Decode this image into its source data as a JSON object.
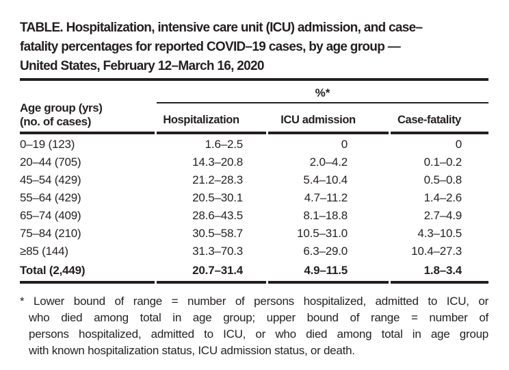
{
  "title": {
    "lines": [
      "TABLE. Hospitalization, intensive care unit (ICU) admission, and case–",
      "fatality percentages for reported COVID–19 cases, by age group —",
      "United States, February 12–March 16, 2020"
    ]
  },
  "table": {
    "col1_header_line1": "Age group (yrs)",
    "col1_header_line2": "(no. of cases)",
    "span_header": "%*",
    "columns": [
      "Hospitalization",
      "ICU admission",
      "Case-fatality"
    ],
    "rows": [
      {
        "age": "0–19 (123)",
        "hospitalization": "1.6–2.5",
        "icu": "0",
        "fatality": "0"
      },
      {
        "age": "20–44 (705)",
        "hospitalization": "14.3–20.8",
        "icu": "2.0–4.2",
        "fatality": "0.1–0.2"
      },
      {
        "age": "45–54 (429)",
        "hospitalization": "21.2–28.3",
        "icu": "5.4–10.4",
        "fatality": "0.5–0.8"
      },
      {
        "age": "55–64 (429)",
        "hospitalization": "20.5–30.1",
        "icu": "4.7–11.2",
        "fatality": "1.4–2.6"
      },
      {
        "age": "65–74 (409)",
        "hospitalization": "28.6–43.5",
        "icu": "8.1–18.8",
        "fatality": "2.7–4.9"
      },
      {
        "age": "75–84 (210)",
        "hospitalization": "30.5–58.7",
        "icu": "10.5–31.0",
        "fatality": "4.3–10.5"
      },
      {
        "age": "≥85 (144)",
        "hospitalization": "31.3–70.3",
        "icu": "6.3–29.0",
        "fatality": "10.4–27.3"
      }
    ],
    "total": {
      "age": "Total (2,449)",
      "hospitalization": "20.7–31.4",
      "icu": "4.9–11.5",
      "fatality": "1.8–3.4"
    }
  },
  "footnote": {
    "lines": [
      "* Lower bound of range = number of persons hospitalized, admitted to ICU, or",
      "who died among total in age group; upper bound of range = number of",
      "persons hospitalized, admitted to ICU, or who died among total in age group",
      "with known hospitalization status, ICU admission status, or death."
    ]
  },
  "colors": {
    "text": "#231f20",
    "background": "#ffffff"
  }
}
